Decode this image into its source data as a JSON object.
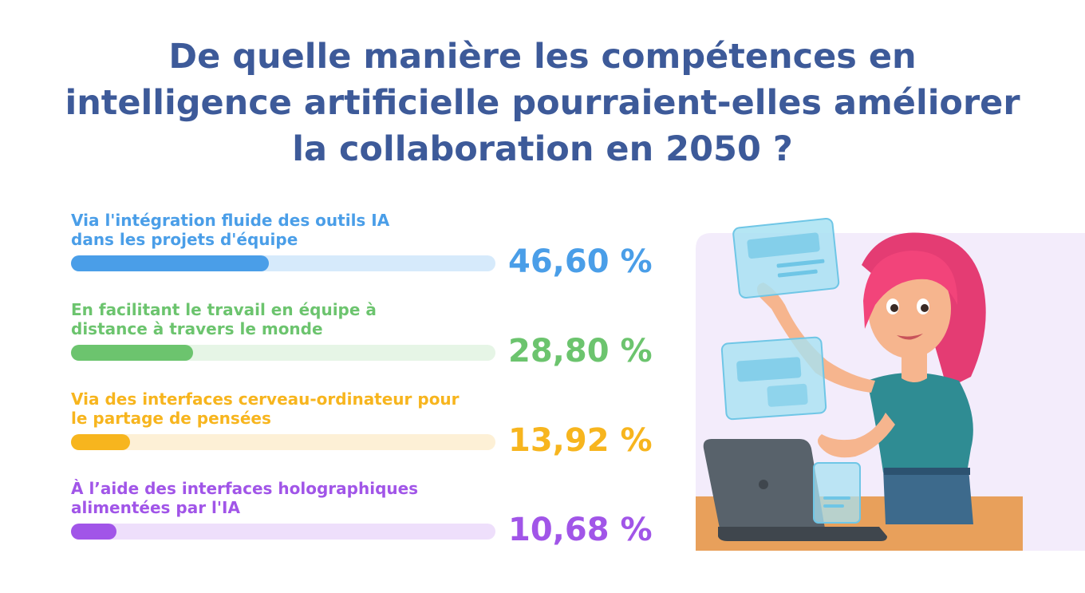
{
  "chart_data": {
    "type": "bar",
    "orientation": "horizontal",
    "title": "De quelle manière les compétences en intelligence artificielle pourraient-elles améliorer la collaboration en 2050 ?",
    "title_lines": [
      "De quelle manière les compétences en",
      "intelligence artificielle pourraient-elles améliorer",
      "la collaboration en 2050 ?"
    ],
    "xlim": [
      0,
      100
    ],
    "bars": [
      {
        "label_lines": [
          "Via l'intégration fluide des outils IA",
          "dans les projets d'équipe"
        ],
        "value": 46.6,
        "value_label": "46,60 %",
        "color": "#4a9ee8",
        "track_color": "#d6eafb"
      },
      {
        "label_lines": [
          "En facilitant le travail en équipe à",
          "distance à travers le monde"
        ],
        "value": 28.8,
        "value_label": "28,80 %",
        "color": "#6cc46e",
        "track_color": "#e6f5e6"
      },
      {
        "label_lines": [
          "Via des interfaces cerveau-ordinateur pour",
          "le partage de pensées"
        ],
        "value": 13.92,
        "value_label": "13,92 %",
        "color": "#f7b51e",
        "track_color": "#fdf0d6"
      },
      {
        "label_lines": [
          "À l’aide des interfaces holographiques",
          "alimentées par l'IA"
        ],
        "value": 10.68,
        "value_label": "10,68 %",
        "color": "#a155e8",
        "track_color": "#eedffb"
      }
    ]
  },
  "colors": {
    "title": "#3d5a99",
    "panel": "#f3ecfb",
    "hair": "#f2447a",
    "skin": "#f6b58e",
    "shirt": "#2f8c93",
    "jeans": "#3d6a8c",
    "laptop": "#58626b",
    "desk": "#e8a05b",
    "holo": "#a8e2f2"
  }
}
